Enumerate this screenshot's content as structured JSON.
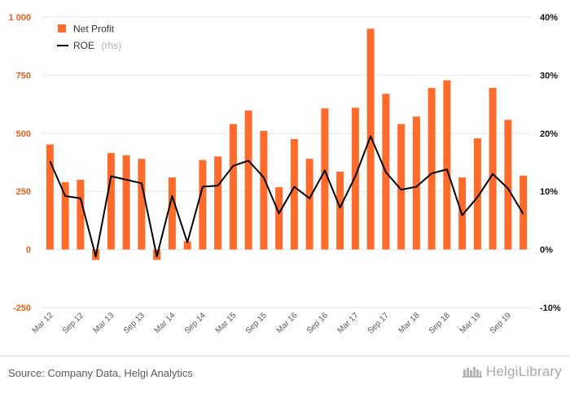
{
  "chart_data": {
    "type": "bar",
    "categories": [
      "Mar 12",
      "Jun 12",
      "Sep 12",
      "Dec 12",
      "Mar 13",
      "Jun 13",
      "Sep 13",
      "Dec 13",
      "Mar 14",
      "Jun 14",
      "Sep 14",
      "Dec 14",
      "Mar 15",
      "Jun 15",
      "Sep 15",
      "Dec 15",
      "Mar 16",
      "Jun 16",
      "Sep 16",
      "Dec 16",
      "Mar 17",
      "Jun 17",
      "Sep 17",
      "Dec 17",
      "Mar 18",
      "Jun 18",
      "Sep 18",
      "Dec 18",
      "Mar 19",
      "Jun 19",
      "Sep 19",
      "Dec 19"
    ],
    "x_tick_labels": [
      "Mar 12",
      "Sep 12",
      "Mar 13",
      "Sep 13",
      "Mar 14",
      "Sep 14",
      "Mar 15",
      "Sep 15",
      "Mar 16",
      "Sep 16",
      "Mar 17",
      "Sep 17",
      "Mar 18",
      "Sep 18",
      "Mar 19",
      "Sep 19"
    ],
    "series": [
      {
        "name": "Net Profit",
        "kind": "bar",
        "axis": "left",
        "color": "#ff6b2b",
        "values": [
          452,
          290,
          300,
          -45,
          415,
          405,
          390,
          -45,
          310,
          35,
          385,
          400,
          540,
          598,
          510,
          268,
          475,
          390,
          607,
          335,
          610,
          950,
          670,
          540,
          572,
          695,
          728,
          310,
          478,
          695,
          558,
          318
        ]
      },
      {
        "name": "ROE",
        "name_suffix": "(rhs)",
        "kind": "line",
        "axis": "right",
        "color": "#000000",
        "values": [
          15.2,
          9.2,
          8.8,
          -1.2,
          12.6,
          12.0,
          11.4,
          -1.2,
          9.2,
          1.2,
          10.8,
          11.0,
          14.4,
          15.3,
          12.4,
          6.2,
          10.8,
          8.8,
          13.6,
          7.2,
          12.6,
          19.5,
          13.3,
          10.3,
          10.8,
          13.1,
          13.8,
          5.9,
          9.0,
          13.0,
          10.5,
          6.1
        ]
      }
    ],
    "ylim": [
      -250,
      1000
    ],
    "yticks": [
      -250,
      0,
      250,
      500,
      750,
      1000
    ],
    "ytick_labels": [
      "-250",
      "0",
      "250",
      "500",
      "750",
      "1 000"
    ],
    "y2lim": [
      -10,
      40
    ],
    "y2ticks": [
      -10,
      0,
      10,
      20,
      30,
      40
    ],
    "y2tick_labels": [
      "-10%",
      "0%",
      "10%",
      "20%",
      "30%",
      "40%"
    ],
    "grid": true,
    "legend_position": "top-left",
    "left_axis_color": "#e8601c"
  },
  "footer": {
    "source": "Source: Company Data, Helgi Analytics",
    "brand": "HelgiLibrary"
  }
}
